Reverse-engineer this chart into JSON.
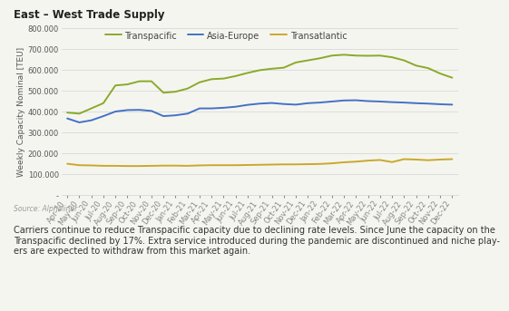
{
  "title": "East – West Trade Supply",
  "ylabel": "Weekly Capacity Nominal [TEU]",
  "source": "Source: Alphaliner",
  "footnote": "Carriers continue to reduce Transpacific capacity due to declining rate levels. Since June the capacity on the\nTranspacific declined by 17%. Extra service introduced during the pandemic are discontinued and niche play-\ners are expected to withdraw from this market again.",
  "x_labels": [
    "Apr-20",
    "May-20",
    "Jun-20",
    "Jul-20",
    "Aug-20",
    "Sep-20",
    "Oct-20",
    "Nov-20",
    "Dec-20",
    "Jan-21",
    "Feb-21",
    "Mar-21",
    "Apr-21",
    "May-21",
    "Jun-21",
    "Jul-21",
    "Aug-21",
    "Sep-21",
    "Oct-21",
    "Nov-21",
    "Dec-21",
    "Jan-22",
    "Feb-22",
    "Mar-22",
    "Apr-22",
    "May-22",
    "Jun-22",
    "Jul-22",
    "Aug-22",
    "Sep-22",
    "Oct-22",
    "Nov-22",
    "Dec-22"
  ],
  "transpacific": [
    395000,
    390000,
    415000,
    440000,
    525000,
    530000,
    545000,
    545000,
    490000,
    495000,
    510000,
    540000,
    555000,
    558000,
    570000,
    585000,
    598000,
    605000,
    610000,
    635000,
    645000,
    655000,
    668000,
    672000,
    668000,
    667000,
    668000,
    660000,
    645000,
    620000,
    608000,
    582000,
    562000
  ],
  "asia_europe": [
    367000,
    348000,
    358000,
    378000,
    400000,
    407000,
    408000,
    403000,
    378000,
    382000,
    390000,
    415000,
    415000,
    418000,
    423000,
    432000,
    438000,
    441000,
    436000,
    433000,
    440000,
    443000,
    448000,
    453000,
    454000,
    450000,
    448000,
    445000,
    443000,
    440000,
    438000,
    435000,
    433000
  ],
  "transatlantic": [
    150000,
    143000,
    142000,
    140000,
    140000,
    139000,
    139000,
    140000,
    141000,
    141000,
    140000,
    142000,
    143000,
    143000,
    143000,
    144000,
    145000,
    146000,
    147000,
    147000,
    148000,
    149000,
    152000,
    157000,
    160000,
    165000,
    168000,
    158000,
    172000,
    170000,
    167000,
    170000,
    172000
  ],
  "transpacific_color": "#8aaa2a",
  "asia_europe_color": "#4472c4",
  "transatlantic_color": "#c9a92c",
  "bottom_line_color": "#c9a92c",
  "ylim": [
    0,
    800000
  ],
  "yticks": [
    0,
    100000,
    200000,
    300000,
    400000,
    500000,
    600000,
    700000,
    800000
  ],
  "background_color": "#f5f5f0",
  "plot_bg_color": "#f5f5f0",
  "grid_color": "#d8d8d8",
  "title_fontsize": 8.5,
  "label_fontsize": 6.5,
  "tick_fontsize": 6.0,
  "legend_fontsize": 7.0,
  "source_fontsize": 5.5,
  "footnote_fontsize": 7.0
}
